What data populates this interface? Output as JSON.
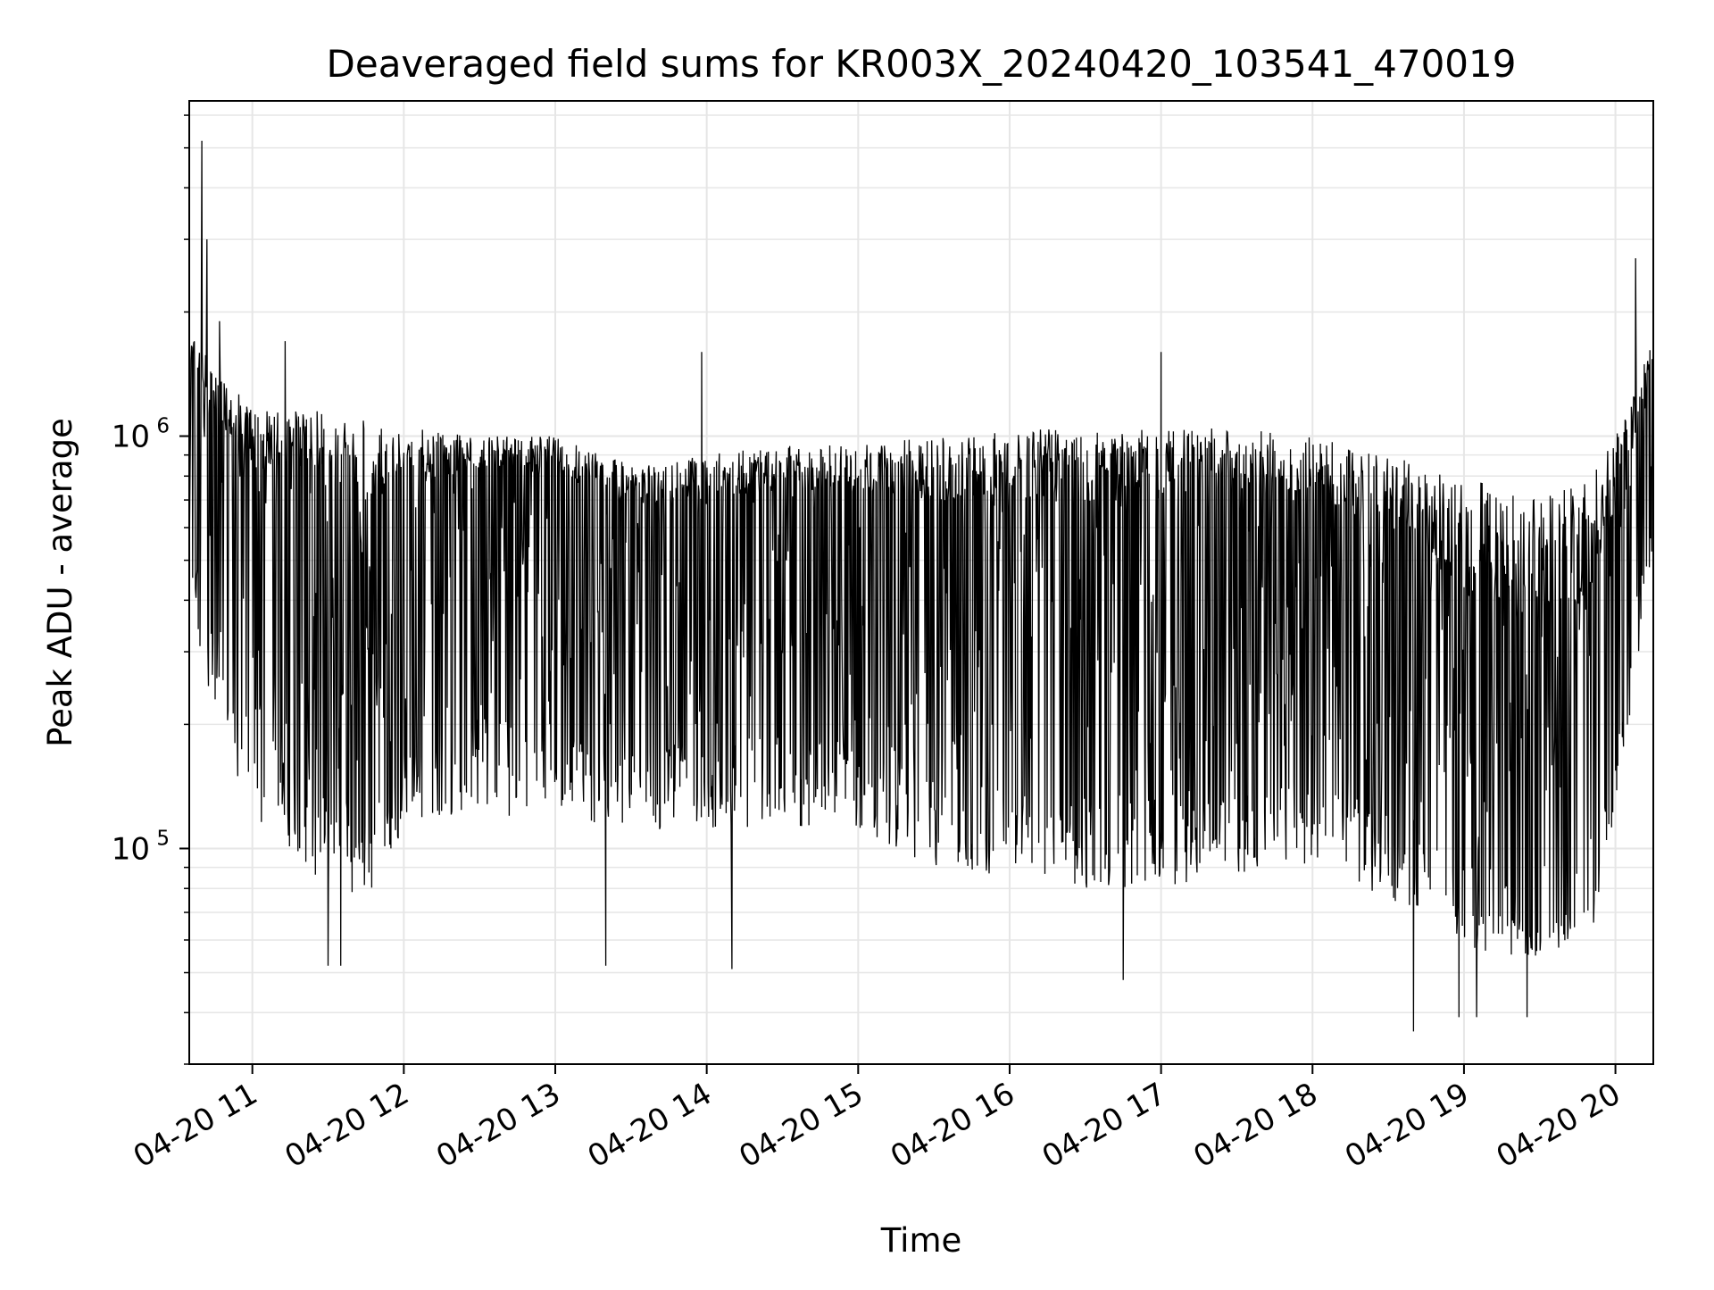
{
  "chart_data": {
    "type": "line",
    "title": "Deaveraged field sums for KR003X_20240420_103541_470019",
    "xlabel": "Time",
    "ylabel": "Peak ADU - average",
    "y_scale": "log",
    "grid": true,
    "line_color": "#000000",
    "grid_color": "#e6e6e6",
    "xlim": [
      "2024-04-20 10:35",
      "2024-04-20 20:15"
    ],
    "ylim": [
      30000,
      6500000
    ],
    "x_ticks": [
      {
        "value": "2024-04-20 11:00",
        "label": "04-20 11"
      },
      {
        "value": "2024-04-20 12:00",
        "label": "04-20 12"
      },
      {
        "value": "2024-04-20 13:00",
        "label": "04-20 13"
      },
      {
        "value": "2024-04-20 14:00",
        "label": "04-20 14"
      },
      {
        "value": "2024-04-20 15:00",
        "label": "04-20 15"
      },
      {
        "value": "2024-04-20 16:00",
        "label": "04-20 16"
      },
      {
        "value": "2024-04-20 17:00",
        "label": "04-20 17"
      },
      {
        "value": "2024-04-20 18:00",
        "label": "04-20 18"
      },
      {
        "value": "2024-04-20 19:00",
        "label": "04-20 19"
      },
      {
        "value": "2024-04-20 20:00",
        "label": "04-20 20"
      }
    ],
    "y_major_ticks": [
      {
        "value": 100000,
        "base": "10",
        "exponent": "5"
      },
      {
        "value": 1000000,
        "base": "10",
        "exponent": "6"
      }
    ],
    "envelope": {
      "x": [
        "2024-04-20 10:35",
        "2024-04-20 10:45",
        "2024-04-20 11:00",
        "2024-04-20 11:15",
        "2024-04-20 11:30",
        "2024-04-20 11:45",
        "2024-04-20 12:00",
        "2024-04-20 12:30",
        "2024-04-20 13:00",
        "2024-04-20 13:30",
        "2024-04-20 14:00",
        "2024-04-20 14:30",
        "2024-04-20 15:00",
        "2024-04-20 15:30",
        "2024-04-20 16:00",
        "2024-04-20 16:30",
        "2024-04-20 17:00",
        "2024-04-20 17:30",
        "2024-04-20 18:00",
        "2024-04-20 18:30",
        "2024-04-20 18:45",
        "2024-04-20 19:00",
        "2024-04-20 19:30",
        "2024-04-20 19:50",
        "2024-04-20 20:00",
        "2024-04-20 20:15"
      ],
      "upper": [
        1800000,
        1500000,
        1150000,
        1150000,
        1150000,
        1100000,
        1050000,
        1000000,
        1000000,
        850000,
        900000,
        950000,
        950000,
        1000000,
        1050000,
        1050000,
        1050000,
        1050000,
        1000000,
        900000,
        850000,
        800000,
        700000,
        800000,
        1000000,
        1700000
      ],
      "mid": [
        1200000,
        700000,
        400000,
        500000,
        350000,
        300000,
        400000,
        600000,
        550000,
        450000,
        450000,
        450000,
        450000,
        350000,
        350000,
        300000,
        350000,
        400000,
        400000,
        250000,
        200000,
        120000,
        90000,
        110000,
        300000,
        1000000
      ],
      "lower": [
        400000,
        200000,
        110000,
        100000,
        80000,
        75000,
        110000,
        120000,
        120000,
        110000,
        110000,
        110000,
        110000,
        90000,
        85000,
        80000,
        80000,
        85000,
        85000,
        75000,
        70000,
        55000,
        55000,
        60000,
        120000,
        500000
      ]
    },
    "spikes": [
      {
        "x": "2024-04-20 10:40",
        "y": 5200000
      },
      {
        "x": "2024-04-20 10:42",
        "y": 3000000
      },
      {
        "x": "2024-04-20 10:47",
        "y": 1900000
      },
      {
        "x": "2024-04-20 11:13",
        "y": 1700000
      },
      {
        "x": "2024-04-20 13:58",
        "y": 1600000
      },
      {
        "x": "2024-04-20 17:00",
        "y": 1600000
      },
      {
        "x": "2024-04-20 20:08",
        "y": 2700000
      },
      {
        "x": "2024-04-20 11:30",
        "y": 52000
      },
      {
        "x": "2024-04-20 11:35",
        "y": 52000
      },
      {
        "x": "2024-04-20 13:20",
        "y": 52000
      },
      {
        "x": "2024-04-20 14:10",
        "y": 51000
      },
      {
        "x": "2024-04-20 16:45",
        "y": 48000
      },
      {
        "x": "2024-04-20 18:40",
        "y": 36000
      },
      {
        "x": "2024-04-20 18:58",
        "y": 39000
      },
      {
        "x": "2024-04-20 19:05",
        "y": 39000
      },
      {
        "x": "2024-04-20 19:25",
        "y": 39000
      }
    ]
  }
}
